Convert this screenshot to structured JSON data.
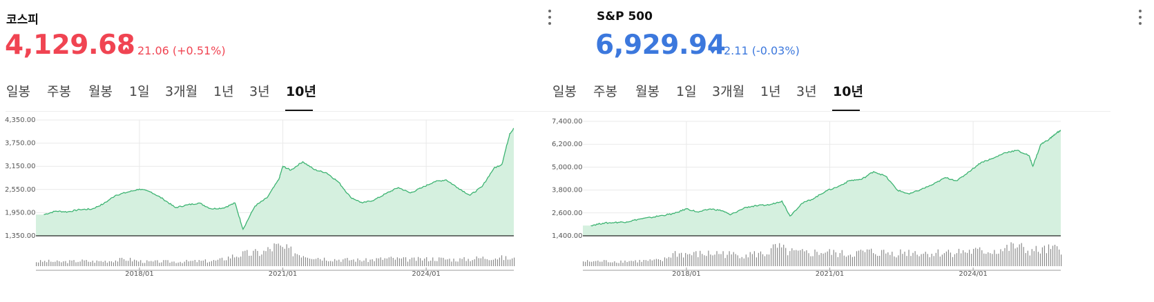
{
  "panels": [
    {
      "title": "코스피",
      "price": "4,129.68",
      "change_direction": "up",
      "change": "21.06",
      "change_pct": "(+0.51%)",
      "price_color": "#f04452",
      "tabs": [
        "일봉",
        "주봉",
        "월봉",
        "1일",
        "3개월",
        "1년",
        "3년",
        "10년"
      ],
      "active_tab": "10년",
      "more_icon": "vertical-ellipsis-icon"
    },
    {
      "title": "S&P 500",
      "price": "6,929.94",
      "change_direction": "down",
      "change": "2.11",
      "change_pct": "(-0.03%)",
      "price_color": "#3c78dd",
      "tabs": [
        "일봉",
        "주봉",
        "월봉",
        "1일",
        "3개월",
        "1년",
        "3년",
        "10년"
      ],
      "active_tab": "10년",
      "more_icon": "vertical-ellipsis-icon"
    }
  ],
  "colors": {
    "up": "#f04452",
    "down": "#3c78dd",
    "line": "#3cb371",
    "fill": "#d5f0df",
    "volume": "#8a8a8a"
  },
  "chart_data": [
    {
      "type": "area",
      "series": [
        {
          "x": [
            "2016-01",
            "2016-04",
            "2016-07",
            "2016-10",
            "2017-01",
            "2017-04",
            "2017-07",
            "2017-10",
            "2018-01",
            "2018-04",
            "2018-07",
            "2018-10",
            "2019-01",
            "2019-04",
            "2019-07",
            "2019-10",
            "2020-01",
            "2020-03",
            "2020-06",
            "2020-09",
            "2020-12",
            "2021-01",
            "2021-03",
            "2021-06",
            "2021-09",
            "2021-12",
            "2022-03",
            "2022-06",
            "2022-09",
            "2022-12",
            "2023-03",
            "2023-06",
            "2023-09",
            "2023-12",
            "2024-03",
            "2024-06",
            "2024-09",
            "2024-12",
            "2025-03",
            "2025-06",
            "2025-08",
            "2025-10",
            "2025-11"
          ],
          "values": [
            1900,
            1990,
            1970,
            2030,
            2040,
            2180,
            2400,
            2480,
            2560,
            2480,
            2300,
            2080,
            2150,
            2200,
            2050,
            2070,
            2200,
            1520,
            2120,
            2330,
            2810,
            3150,
            3050,
            3270,
            3060,
            2980,
            2740,
            2350,
            2200,
            2280,
            2450,
            2600,
            2460,
            2600,
            2750,
            2800,
            2590,
            2400,
            2620,
            3100,
            3200,
            4000,
            4129.68
          ]
        }
      ],
      "ylim": [
        1350,
        4350
      ],
      "yticks": [
        "4,350.00",
        "3,750.00",
        "3,150.00",
        "2,550.00",
        "1,950.00",
        "1,350.00"
      ],
      "ytick_values": [
        4350,
        3750,
        3150,
        2550,
        1950,
        1350
      ],
      "xticks": [
        "2018/01",
        "2021/01",
        "2024/01"
      ],
      "xtick_values": [
        "2018-01",
        "2021-01",
        "2024-01"
      ],
      "xlim": [
        "2015-11",
        "2025-11"
      ],
      "volume": [
        0.19,
        0.21,
        0.18,
        0.2,
        0.23,
        0.2,
        0.22,
        0.25,
        0.3,
        0.22,
        0.18,
        0.2,
        0.19,
        0.2,
        0.21,
        0.22,
        0.24,
        0.4,
        0.5,
        0.55,
        0.6,
        0.85,
        0.7,
        0.55,
        0.45,
        0.35,
        0.3,
        0.28,
        0.27,
        0.25,
        0.3,
        0.33,
        0.3,
        0.28,
        0.3,
        0.32,
        0.3,
        0.28,
        0.3,
        0.35,
        0.38,
        0.35,
        0.3
      ],
      "grid": true
    },
    {
      "type": "area",
      "series": [
        {
          "x": [
            "2016-01",
            "2016-04",
            "2016-07",
            "2016-10",
            "2017-01",
            "2017-04",
            "2017-07",
            "2017-10",
            "2018-01",
            "2018-04",
            "2018-07",
            "2018-10",
            "2018-12",
            "2019-04",
            "2019-07",
            "2019-10",
            "2020-01",
            "2020-03",
            "2020-06",
            "2020-09",
            "2020-12",
            "2021-03",
            "2021-06",
            "2021-09",
            "2021-12",
            "2022-03",
            "2022-06",
            "2022-09",
            "2022-12",
            "2023-03",
            "2023-06",
            "2023-09",
            "2023-12",
            "2024-03",
            "2024-06",
            "2024-09",
            "2024-12",
            "2025-03",
            "2025-04",
            "2025-06",
            "2025-08",
            "2025-10",
            "2025-11"
          ],
          "values": [
            1940,
            2060,
            2100,
            2130,
            2270,
            2360,
            2470,
            2570,
            2820,
            2640,
            2810,
            2720,
            2500,
            2900,
            2980,
            3030,
            3230,
            2440,
            3100,
            3360,
            3750,
            3970,
            4300,
            4360,
            4770,
            4530,
            3790,
            3590,
            3840,
            4100,
            4450,
            4290,
            4770,
            5250,
            5460,
            5760,
            5880,
            5610,
            5050,
            6200,
            6450,
            6800,
            6929.94
          ]
        }
      ],
      "ylim": [
        1400,
        7400
      ],
      "yticks": [
        "7,400.00",
        "6,200.00",
        "5,000.00",
        "3,800.00",
        "2,600.00",
        "1,400.00"
      ],
      "ytick_values": [
        7400,
        6200,
        5000,
        3800,
        2600,
        1400
      ],
      "xticks": [
        "2018/01",
        "2021/01",
        "2024/01"
      ],
      "xtick_values": [
        "2018-01",
        "2021-01",
        "2024-01"
      ],
      "xlim": [
        "2015-11",
        "2025-11"
      ],
      "volume": [
        0.2,
        0.2,
        0.21,
        0.2,
        0.22,
        0.22,
        0.23,
        0.24,
        0.55,
        0.5,
        0.5,
        0.52,
        0.55,
        0.48,
        0.5,
        0.5,
        0.52,
        0.8,
        0.6,
        0.55,
        0.55,
        0.6,
        0.55,
        0.5,
        0.55,
        0.6,
        0.58,
        0.55,
        0.58,
        0.6,
        0.55,
        0.55,
        0.6,
        0.6,
        0.62,
        0.62,
        0.65,
        0.7,
        0.85,
        0.65,
        0.65,
        0.7,
        0.7
      ],
      "grid": true
    }
  ]
}
